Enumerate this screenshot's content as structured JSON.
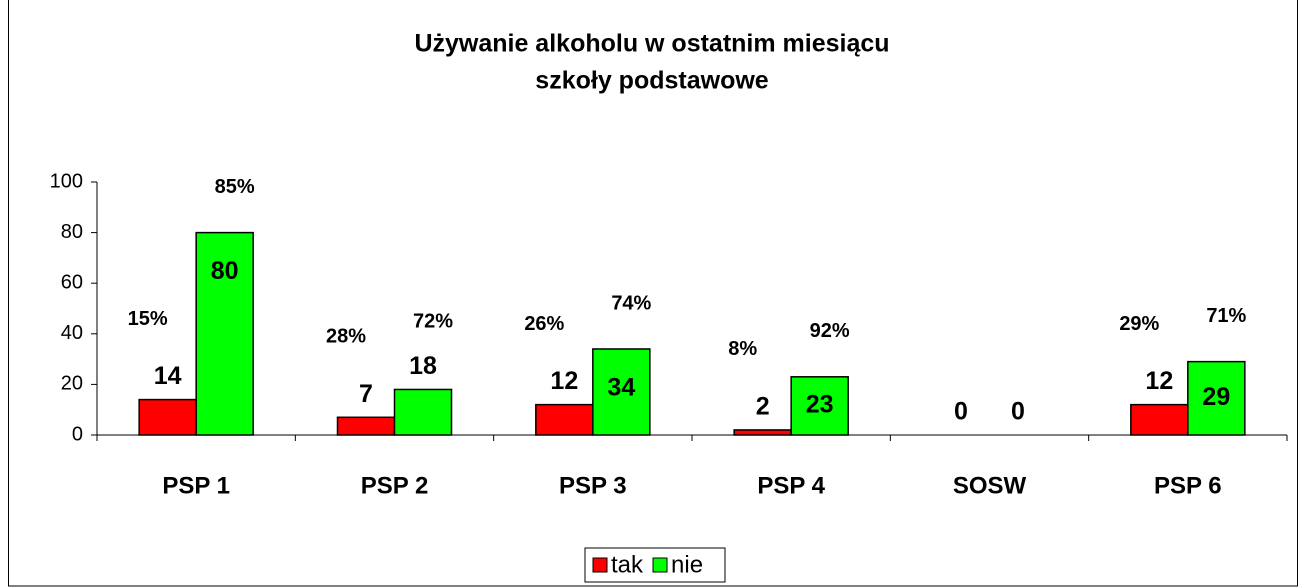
{
  "chart_data": {
    "type": "bar",
    "title": "Używanie alkoholu w ostatnim miesiącu",
    "subtitle": "szkoły podstawowe",
    "categories": [
      "PSP 1",
      "PSP 2",
      "PSP 3",
      "PSP 4",
      "SOSW",
      "PSP 6"
    ],
    "series": [
      {
        "name": "tak",
        "color": "#ff0000",
        "values": [
          14,
          7,
          12,
          2,
          0,
          12
        ],
        "percent_labels": [
          "15%",
          "28%",
          "26%",
          "8%",
          null,
          "29%"
        ]
      },
      {
        "name": "nie",
        "color": "#00ff00",
        "values": [
          80,
          18,
          34,
          23,
          0,
          29
        ],
        "percent_labels": [
          "85%",
          "72%",
          "74%",
          "92%",
          null,
          "71%"
        ]
      }
    ],
    "ylim": [
      0,
      100
    ],
    "yticks": [
      0,
      20,
      40,
      60,
      80,
      100
    ],
    "grid": false,
    "legend": "bottom"
  }
}
